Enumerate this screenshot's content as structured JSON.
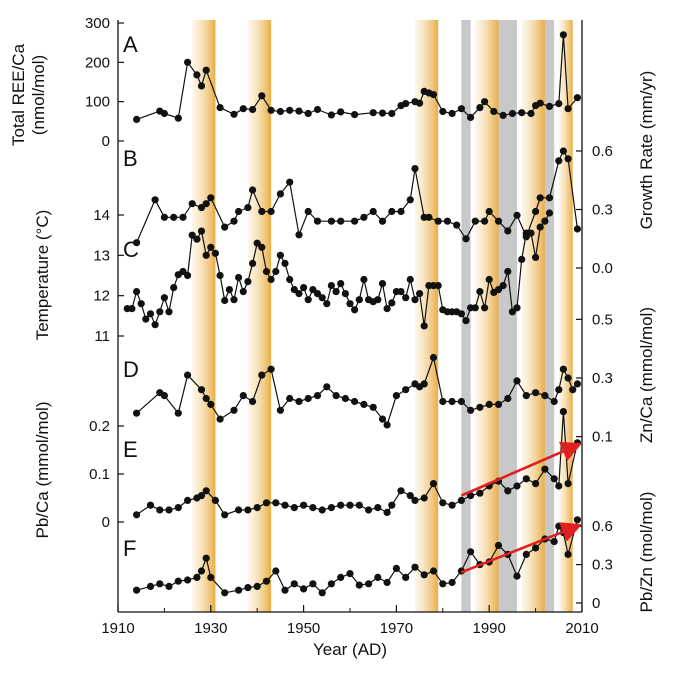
{
  "chart_data": {
    "type": "line",
    "x_axis": {
      "label": "Year (AD)",
      "range": [
        1910,
        2010
      ],
      "ticks": [
        1910,
        1930,
        1950,
        1970,
        1990,
        2010
      ]
    },
    "shading": {
      "orange_bands": [
        [
          1926,
          1931
        ],
        [
          1938,
          1943
        ],
        [
          1974,
          1979
        ],
        [
          1987,
          1992
        ],
        [
          1997,
          2002
        ],
        [
          2005,
          2008
        ]
      ],
      "gray_bands": [
        [
          1984,
          1986
        ],
        [
          1992,
          1996
        ],
        [
          2002,
          2004
        ]
      ],
      "colors": {
        "orange": "#EEBB55",
        "gray": "#C8C8C8"
      }
    },
    "line_color": "#111111",
    "trend_color": "#E02020",
    "panels": [
      {
        "id": "A",
        "label": "A",
        "axis_side": "left",
        "ylabel": "Total REE/Ca (nmol/mol)",
        "ylabel_lines": [
          "Total REE/Ca",
          "(nmol/mol)"
        ],
        "yrange": [
          0,
          300
        ],
        "ticks": [
          0,
          100,
          200,
          300
        ],
        "x": [
          1914,
          1919,
          1920,
          1923,
          1925,
          1927,
          1928,
          1929,
          1932,
          1935,
          1937,
          1939,
          1941,
          1943,
          1945,
          1947,
          1949,
          1951,
          1953,
          1956,
          1958,
          1961,
          1965,
          1967,
          1969,
          1971,
          1972,
          1974,
          1975,
          1976,
          1977,
          1978,
          1980,
          1982,
          1984,
          1986,
          1988,
          1989,
          1991,
          1993,
          1995,
          1997,
          1999,
          2000,
          2001,
          2003,
          2005,
          2006,
          2007,
          2009
        ],
        "y": [
          55,
          76,
          70,
          58,
          200,
          168,
          140,
          180,
          85,
          68,
          82,
          80,
          115,
          78,
          75,
          78,
          76,
          70,
          80,
          66,
          74,
          67,
          72,
          71,
          70,
          90,
          95,
          100,
          96,
          126,
          122,
          118,
          75,
          70,
          82,
          60,
          85,
          100,
          75,
          65,
          70,
          72,
          70,
          90,
          96,
          88,
          95,
          270,
          82,
          110
        ]
      },
      {
        "id": "B",
        "label": "B",
        "axis_side": "right",
        "ylabel": "Growth Rate (mm/yr)",
        "yrange": [
          0,
          0.8
        ],
        "ticks": [
          0.0,
          0.3,
          0.6
        ],
        "x": [
          1914,
          1918,
          1920,
          1922,
          1924,
          1926,
          1928,
          1929,
          1930,
          1933,
          1935,
          1936,
          1938,
          1939,
          1941,
          1943,
          1945,
          1947,
          1949,
          1951,
          1953,
          1956,
          1958,
          1961,
          1963,
          1965,
          1967,
          1969,
          1971,
          1973,
          1974,
          1976,
          1977,
          1979,
          1981,
          1983,
          1985,
          1987,
          1989,
          1990,
          1992,
          1994,
          1996,
          1998,
          2000,
          2001,
          2003,
          2005,
          2006,
          2007,
          2009
        ],
        "y": [
          0.13,
          0.35,
          0.26,
          0.26,
          0.26,
          0.33,
          0.31,
          0.33,
          0.36,
          0.21,
          0.24,
          0.29,
          0.31,
          0.4,
          0.29,
          0.29,
          0.38,
          0.44,
          0.17,
          0.29,
          0.24,
          0.24,
          0.24,
          0.24,
          0.26,
          0.29,
          0.24,
          0.29,
          0.29,
          0.35,
          0.51,
          0.26,
          0.26,
          0.24,
          0.24,
          0.22,
          0.15,
          0.24,
          0.24,
          0.29,
          0.24,
          0.19,
          0.27,
          0.16,
          0.29,
          0.36,
          0.36,
          0.55,
          0.6,
          0.56,
          0.2
        ]
      },
      {
        "id": "C",
        "label": "C",
        "axis_side": "left",
        "ylabel": "Temperature (°C)",
        "yrange": [
          11,
          14
        ],
        "ticks": [
          11,
          12,
          13,
          14
        ],
        "x": [
          1912,
          1913,
          1914,
          1915,
          1916,
          1917,
          1918,
          1919,
          1920,
          1921,
          1922,
          1923,
          1924,
          1925,
          1926,
          1927,
          1928,
          1929,
          1930,
          1931,
          1932,
          1933,
          1934,
          1935,
          1936,
          1937,
          1938,
          1939,
          1940,
          1941,
          1942,
          1943,
          1944,
          1945,
          1946,
          1947,
          1948,
          1949,
          1950,
          1951,
          1952,
          1953,
          1954,
          1955,
          1956,
          1957,
          1958,
          1959,
          1960,
          1961,
          1962,
          1963,
          1964,
          1965,
          1966,
          1967,
          1968,
          1969,
          1970,
          1971,
          1972,
          1973,
          1974,
          1975,
          1976,
          1977,
          1978,
          1979,
          1980,
          1981,
          1982,
          1983,
          1984,
          1985,
          1986,
          1987,
          1988,
          1989,
          1990,
          1991,
          1992,
          1993,
          1994,
          1995,
          1996,
          1997,
          1998,
          1999,
          2000,
          2001,
          2002,
          2003
        ],
        "y": [
          11.68,
          11.68,
          12.1,
          11.8,
          11.42,
          11.55,
          11.28,
          11.6,
          11.95,
          11.6,
          12.2,
          12.52,
          12.6,
          12.5,
          13.5,
          13.4,
          13.6,
          13,
          13.2,
          13.05,
          12.5,
          11.88,
          12.15,
          11.9,
          12.45,
          12.1,
          12.35,
          12.8,
          13.3,
          13.2,
          12.6,
          12.4,
          12.6,
          13,
          12.8,
          12.4,
          12.15,
          12.05,
          12.2,
          11.9,
          12.15,
          12.05,
          11.95,
          11.8,
          12.25,
          12.1,
          12.3,
          12.05,
          11.8,
          11.65,
          11.9,
          12.4,
          11.9,
          11.85,
          11.9,
          12.3,
          11.68,
          11.82,
          12.1,
          12.1,
          11.95,
          12.4,
          11.9,
          12.05,
          11.25,
          12.25,
          12.25,
          12.25,
          11.65,
          11.6,
          11.6,
          11.6,
          11.55,
          11.38,
          11.7,
          11.7,
          12.1,
          11.7,
          12.4,
          12.08,
          12.15,
          12.25,
          12.6,
          11.6,
          11.7,
          12.9,
          13.55,
          13.55,
          12.95,
          13.7,
          13.85,
          14.05
        ]
      },
      {
        "id": "D",
        "label": "D",
        "axis_side": "right",
        "ylabel": "Zn/Ca (mmol/mol)",
        "yrange": [
          0,
          0.6
        ],
        "ticks": [
          0.1,
          0.3,
          0.5
        ],
        "x": [
          1914,
          1919,
          1920,
          1923,
          1925,
          1928,
          1929,
          1930,
          1932,
          1935,
          1937,
          1939,
          1941,
          1943,
          1945,
          1947,
          1949,
          1951,
          1953,
          1955,
          1957,
          1959,
          1961,
          1963,
          1965,
          1967,
          1968,
          1970,
          1972,
          1974,
          1975,
          1976,
          1978,
          1980,
          1982,
          1984,
          1986,
          1988,
          1990,
          1992,
          1994,
          1996,
          1998,
          2000,
          2002,
          2004,
          2005,
          2006,
          2007,
          2008,
          2009
        ],
        "y": [
          0.18,
          0.25,
          0.24,
          0.18,
          0.31,
          0.26,
          0.23,
          0.21,
          0.16,
          0.19,
          0.24,
          0.22,
          0.31,
          0.33,
          0.19,
          0.23,
          0.22,
          0.23,
          0.24,
          0.27,
          0.24,
          0.23,
          0.22,
          0.21,
          0.2,
          0.16,
          0.14,
          0.24,
          0.26,
          0.28,
          0.27,
          0.28,
          0.37,
          0.22,
          0.22,
          0.22,
          0.19,
          0.2,
          0.21,
          0.21,
          0.23,
          0.29,
          0.24,
          0.25,
          0.24,
          0.22,
          0.26,
          0.33,
          0.3,
          0.26,
          0.28
        ]
      },
      {
        "id": "E",
        "label": "E",
        "axis_side": "left",
        "ylabel": "Pb/Ca (mmol/mol)",
        "yrange": [
          0,
          0.25
        ],
        "ticks": [
          0,
          0.1,
          0.2
        ],
        "x": [
          1914,
          1917,
          1919,
          1921,
          1923,
          1925,
          1927,
          1928,
          1929,
          1931,
          1933,
          1936,
          1938,
          1940,
          1942,
          1944,
          1946,
          1948,
          1950,
          1952,
          1954,
          1956,
          1958,
          1960,
          1962,
          1964,
          1966,
          1968,
          1969,
          1971,
          1973,
          1974,
          1976,
          1978,
          1980,
          1982,
          1984,
          1986,
          1988,
          1990,
          1992,
          1994,
          1996,
          1998,
          2000,
          2002,
          2004,
          2005,
          2006,
          2007,
          2009
        ],
        "y": [
          0.015,
          0.035,
          0.025,
          0.025,
          0.03,
          0.045,
          0.05,
          0.055,
          0.065,
          0.045,
          0.015,
          0.025,
          0.025,
          0.03,
          0.04,
          0.04,
          0.035,
          0.03,
          0.035,
          0.03,
          0.025,
          0.03,
          0.035,
          0.035,
          0.035,
          0.025,
          0.03,
          0.02,
          0.035,
          0.065,
          0.055,
          0.045,
          0.05,
          0.08,
          0.04,
          0.035,
          0.045,
          0.055,
          0.06,
          0.075,
          0.085,
          0.065,
          0.075,
          0.09,
          0.08,
          0.11,
          0.09,
          0.075,
          0.23,
          0.08,
          0.165
        ]
      },
      {
        "id": "F",
        "label": "F",
        "axis_side": "right",
        "ylabel": "Pb/Zn (mol/mol)",
        "yrange": [
          0,
          0.75
        ],
        "ticks": [
          0,
          0.3,
          0.6
        ],
        "x": [
          1914,
          1917,
          1919,
          1921,
          1923,
          1925,
          1927,
          1928,
          1929,
          1930,
          1933,
          1936,
          1938,
          1940,
          1942,
          1944,
          1946,
          1948,
          1950,
          1952,
          1954,
          1956,
          1958,
          1960,
          1962,
          1964,
          1966,
          1968,
          1970,
          1972,
          1974,
          1976,
          1978,
          1980,
          1982,
          1984,
          1986,
          1988,
          1990,
          1992,
          1994,
          1996,
          1998,
          2000,
          2002,
          2004,
          2005,
          2006,
          2007,
          2009
        ],
        "y": [
          0.1,
          0.13,
          0.15,
          0.13,
          0.17,
          0.18,
          0.2,
          0.25,
          0.35,
          0.2,
          0.08,
          0.1,
          0.12,
          0.13,
          0.17,
          0.25,
          0.1,
          0.15,
          0.11,
          0.15,
          0.08,
          0.15,
          0.2,
          0.23,
          0.14,
          0.15,
          0.2,
          0.16,
          0.27,
          0.2,
          0.28,
          0.22,
          0.25,
          0.15,
          0.16,
          0.25,
          0.4,
          0.3,
          0.32,
          0.45,
          0.38,
          0.21,
          0.38,
          0.43,
          0.5,
          0.48,
          0.6,
          0.55,
          0.38,
          0.65
        ]
      }
    ],
    "trend_arrows": [
      {
        "panel": "E",
        "from": [
          1984,
          0.055
        ],
        "to": [
          2009,
          0.16
        ]
      },
      {
        "panel": "F",
        "from": [
          1984,
          0.24
        ],
        "to": [
          2009,
          0.6
        ]
      }
    ]
  }
}
